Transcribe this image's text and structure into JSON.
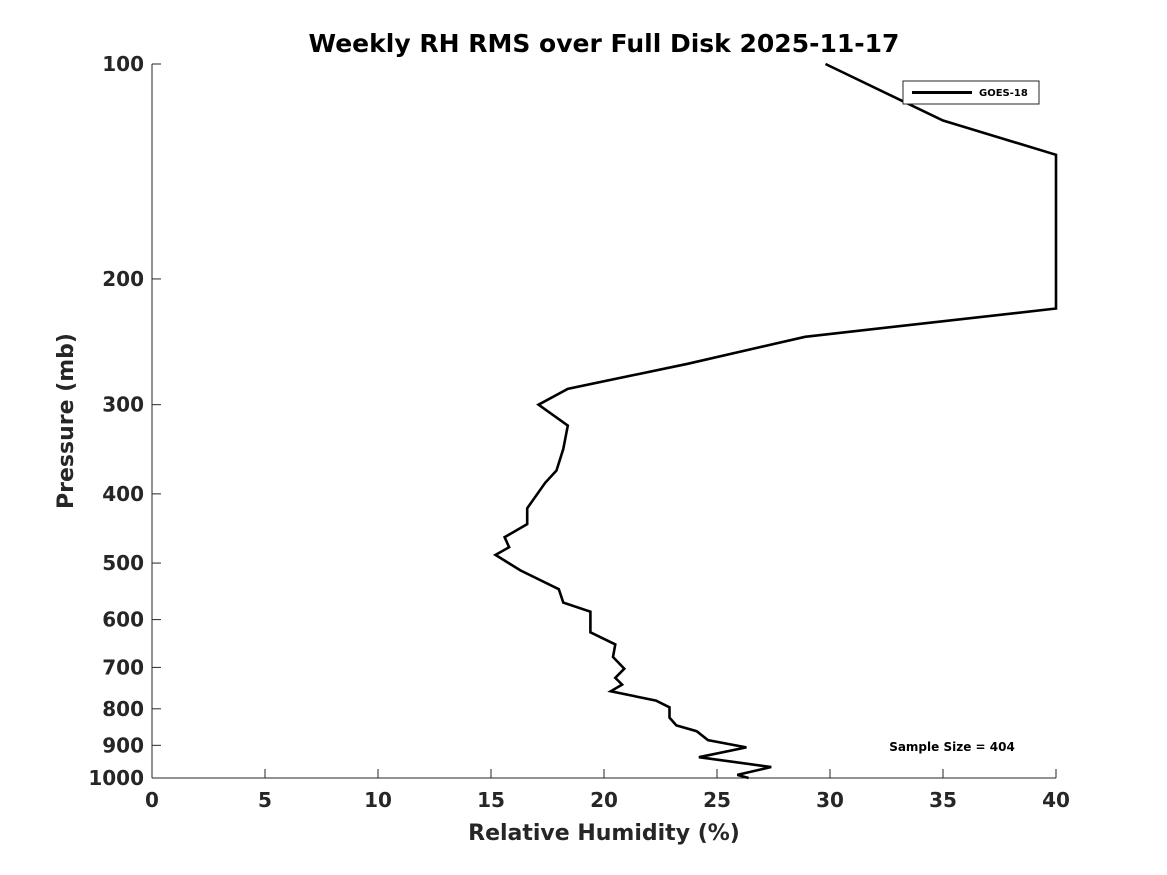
{
  "chart_data": {
    "type": "line",
    "title": "Weekly RH RMS over Full Disk 2025-11-17",
    "xlabel": "Relative Humidity (%)",
    "ylabel": "Pressure (mb)",
    "xlim": [
      0,
      40
    ],
    "ylim": [
      1000,
      100
    ],
    "y_scale": "log",
    "x_ticks": [
      0,
      5,
      10,
      15,
      20,
      25,
      30,
      35,
      40
    ],
    "x_tick_labels": [
      "0",
      "5",
      "10",
      "15",
      "20",
      "25",
      "30",
      "35",
      "40"
    ],
    "y_ticks": [
      100,
      200,
      300,
      400,
      500,
      600,
      700,
      800,
      900,
      1000
    ],
    "y_tick_labels": [
      "100",
      "200",
      "300",
      "400",
      "500",
      "600",
      "700",
      "800",
      "900",
      "1000"
    ],
    "grid": false,
    "legend_position": "top-right",
    "series": [
      {
        "name": "GOES-18",
        "color": "#000000",
        "x": [
          29.8,
          35.0,
          40.0,
          40.0,
          28.9,
          23.7,
          18.4,
          17.1,
          18.4,
          18.2,
          17.9,
          17.4,
          16.6,
          16.6,
          15.6,
          15.8,
          15.2,
          16.3,
          18.0,
          18.2,
          19.4,
          19.4,
          20.5,
          20.4,
          20.9,
          20.5,
          20.8,
          20.3,
          22.3,
          22.9,
          22.9,
          23.2,
          24.1,
          24.6,
          26.3,
          24.2,
          27.4,
          25.9,
          26.4
        ],
        "y": [
          100,
          120,
          134,
          220,
          241,
          263,
          285,
          300,
          321,
          346,
          371,
          386,
          419,
          441,
          460,
          475,
          487,
          512,
          544,
          568,
          585,
          625,
          650,
          677,
          703,
          724,
          740,
          756,
          779,
          796,
          823,
          844,
          860,
          885,
          906,
          935,
          965,
          990,
          1000
        ]
      }
    ],
    "annotations": [
      "Sample Size = 404"
    ]
  }
}
